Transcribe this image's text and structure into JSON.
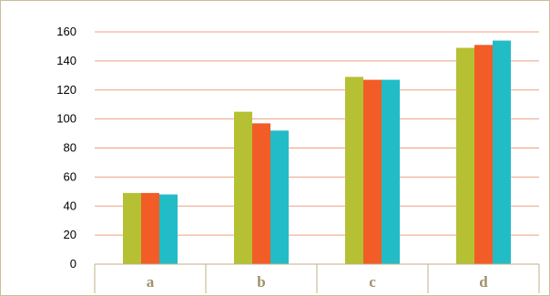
{
  "chart_data": {
    "type": "bar",
    "title": "",
    "xlabel": "",
    "ylabel": "",
    "categories": [
      "a",
      "b",
      "c",
      "d"
    ],
    "series": [
      {
        "color": "#b5c033",
        "values": [
          49,
          105,
          129,
          149
        ]
      },
      {
        "color": "#f25c27",
        "values": [
          49,
          97,
          127,
          151
        ]
      },
      {
        "color": "#22bcc7",
        "values": [
          48,
          92,
          127,
          154
        ]
      }
    ],
    "ylim": [
      0,
      160
    ],
    "yticks": [
      0,
      20,
      40,
      60,
      80,
      100,
      120,
      140,
      160
    ],
    "grid": true,
    "legend": "none",
    "colors": {
      "gridline": "#f0a080",
      "axis": "#bfb08a",
      "category_label": "#a0916c",
      "frame": "#c9bd9a"
    }
  }
}
